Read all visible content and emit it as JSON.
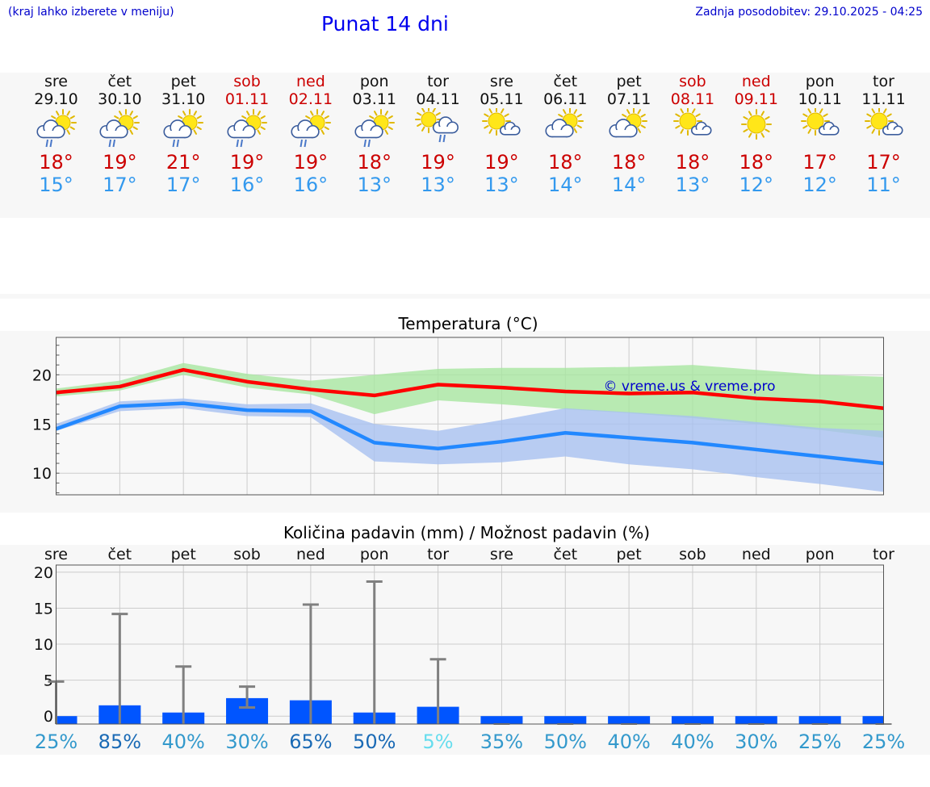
{
  "header": {
    "location_hint": "(kraj lahko izberete v meniju)",
    "title": "Punat 14 dni",
    "updated": "Zadnja posodobitev: 29.10.2025 - 04:25"
  },
  "colors": {
    "weekday_text": "#111111",
    "weekend_text": "#cc0000",
    "max_temp": "#cc0000",
    "min_temp": "#3399ee",
    "rain_bar": "#0055ff",
    "band_max": "#a8e6a0",
    "band_min": "#a8c0f0"
  },
  "days": [
    {
      "name": "sre",
      "date": "29.10",
      "weekend": false,
      "icon": "sun-cloud-rain-icon",
      "max": "18°",
      "min": "15°"
    },
    {
      "name": "čet",
      "date": "30.10",
      "weekend": false,
      "icon": "sun-cloud-rain-icon",
      "max": "19°",
      "min": "17°"
    },
    {
      "name": "pet",
      "date": "31.10",
      "weekend": false,
      "icon": "sun-cloud-rain-icon",
      "max": "21°",
      "min": "17°"
    },
    {
      "name": "sob",
      "date": "01.11",
      "weekend": true,
      "icon": "sun-cloud-rain-icon",
      "max": "19°",
      "min": "16°"
    },
    {
      "name": "ned",
      "date": "02.11",
      "weekend": true,
      "icon": "sun-cloud-rain-icon",
      "max": "19°",
      "min": "16°"
    },
    {
      "name": "pon",
      "date": "03.11",
      "weekend": false,
      "icon": "sun-cloud-rain-icon",
      "max": "18°",
      "min": "13°"
    },
    {
      "name": "tor",
      "date": "04.11",
      "weekend": false,
      "icon": "sun-cloud-rain-small-icon",
      "max": "19°",
      "min": "13°"
    },
    {
      "name": "sre",
      "date": "05.11",
      "weekend": false,
      "icon": "sun-small-cloud-icon",
      "max": "19°",
      "min": "13°"
    },
    {
      "name": "čet",
      "date": "06.11",
      "weekend": false,
      "icon": "sun-cloud-icon",
      "max": "18°",
      "min": "14°"
    },
    {
      "name": "pet",
      "date": "07.11",
      "weekend": false,
      "icon": "sun-cloud-icon",
      "max": "18°",
      "min": "14°"
    },
    {
      "name": "sob",
      "date": "08.11",
      "weekend": true,
      "icon": "sun-small-cloud-icon",
      "max": "18°",
      "min": "13°"
    },
    {
      "name": "ned",
      "date": "09.11",
      "weekend": true,
      "icon": "sun-icon",
      "max": "18°",
      "min": "12°"
    },
    {
      "name": "pon",
      "date": "10.11",
      "weekend": false,
      "icon": "sun-small-cloud-icon",
      "max": "17°",
      "min": "12°"
    },
    {
      "name": "tor",
      "date": "11.11",
      "weekend": false,
      "icon": "sun-small-cloud-icon",
      "max": "17°",
      "min": "11°"
    }
  ],
  "chart_data": [
    {
      "type": "line",
      "title": "Temperatura (°C)",
      "xlabel": "",
      "ylabel": "",
      "x": [
        0,
        1,
        2,
        3,
        4,
        5,
        6,
        7,
        8,
        9,
        10,
        11,
        12,
        13
      ],
      "ylim": [
        7.8,
        23.8
      ],
      "yticks": [
        "10",
        "15",
        "20"
      ],
      "ytick_values": [
        10,
        15,
        20
      ],
      "grid": true,
      "annotation": "© vreme.us & vreme.pro",
      "series": [
        {
          "name": "max",
          "color": "#ff0000",
          "values": [
            18.2,
            18.8,
            20.5,
            19.3,
            18.5,
            17.9,
            19.0,
            18.7,
            18.3,
            18.1,
            18.2,
            17.6,
            17.3,
            16.6
          ],
          "band_low": [
            17.8,
            18.4,
            20.0,
            18.7,
            18.0,
            16.0,
            17.4,
            17.0,
            16.5,
            16.1,
            15.6,
            15.0,
            14.4,
            13.6
          ],
          "band_high": [
            18.6,
            19.4,
            21.2,
            20.1,
            19.4,
            20.0,
            20.6,
            20.7,
            20.7,
            20.8,
            21.0,
            20.5,
            20.0,
            19.8
          ]
        },
        {
          "name": "min",
          "color": "#2288ff",
          "values": [
            14.5,
            16.8,
            17.1,
            16.4,
            16.3,
            13.1,
            12.5,
            13.2,
            14.1,
            13.6,
            13.1,
            12.4,
            11.7,
            11.0
          ],
          "band_low": [
            14.3,
            16.3,
            16.6,
            15.8,
            15.7,
            11.2,
            10.9,
            11.1,
            11.7,
            10.9,
            10.4,
            9.6,
            8.9,
            8.1
          ],
          "band_high": [
            15.0,
            17.3,
            17.6,
            17.0,
            17.1,
            15.0,
            14.3,
            15.4,
            16.6,
            16.2,
            15.8,
            15.2,
            14.6,
            14.3
          ]
        }
      ]
    },
    {
      "type": "bar",
      "title": "Količina padavin (mm) / Možnost padavin (%)",
      "categories": [
        "sre",
        "čet",
        "pet",
        "sob",
        "ned",
        "pon",
        "tor",
        "sre",
        "čet",
        "pet",
        "sob",
        "ned",
        "pon",
        "tor"
      ],
      "values": [
        0,
        1.5,
        0.5,
        2.5,
        2.2,
        0.5,
        1.3,
        0,
        0,
        0,
        0,
        0,
        0,
        0
      ],
      "error_low": [
        0,
        0,
        0,
        1.2,
        0,
        0,
        0,
        0,
        0,
        0,
        0,
        0,
        0,
        0
      ],
      "error_high": [
        4.8,
        14.2,
        6.9,
        4.1,
        15.5,
        18.7,
        7.9,
        0,
        0,
        0,
        0,
        0,
        0,
        0
      ],
      "ylim": [
        -1.1,
        21
      ],
      "yticks": [
        "0",
        "5",
        "10",
        "15",
        "20"
      ],
      "ytick_values": [
        0,
        5,
        10,
        15,
        20
      ],
      "grid": true,
      "probabilities": [
        "25%",
        "85%",
        "40%",
        "30%",
        "65%",
        "50%",
        "5%",
        "35%",
        "50%",
        "40%",
        "40%",
        "30%",
        "25%",
        "25%"
      ],
      "probability_colors": [
        "#3399cc",
        "#1a6ab5",
        "#3399cc",
        "#3399cc",
        "#1a6ab5",
        "#1a6ab5",
        "#66ddee",
        "#3399cc",
        "#3399cc",
        "#3399cc",
        "#3399cc",
        "#3399cc",
        "#3399cc",
        "#3399cc"
      ]
    }
  ]
}
